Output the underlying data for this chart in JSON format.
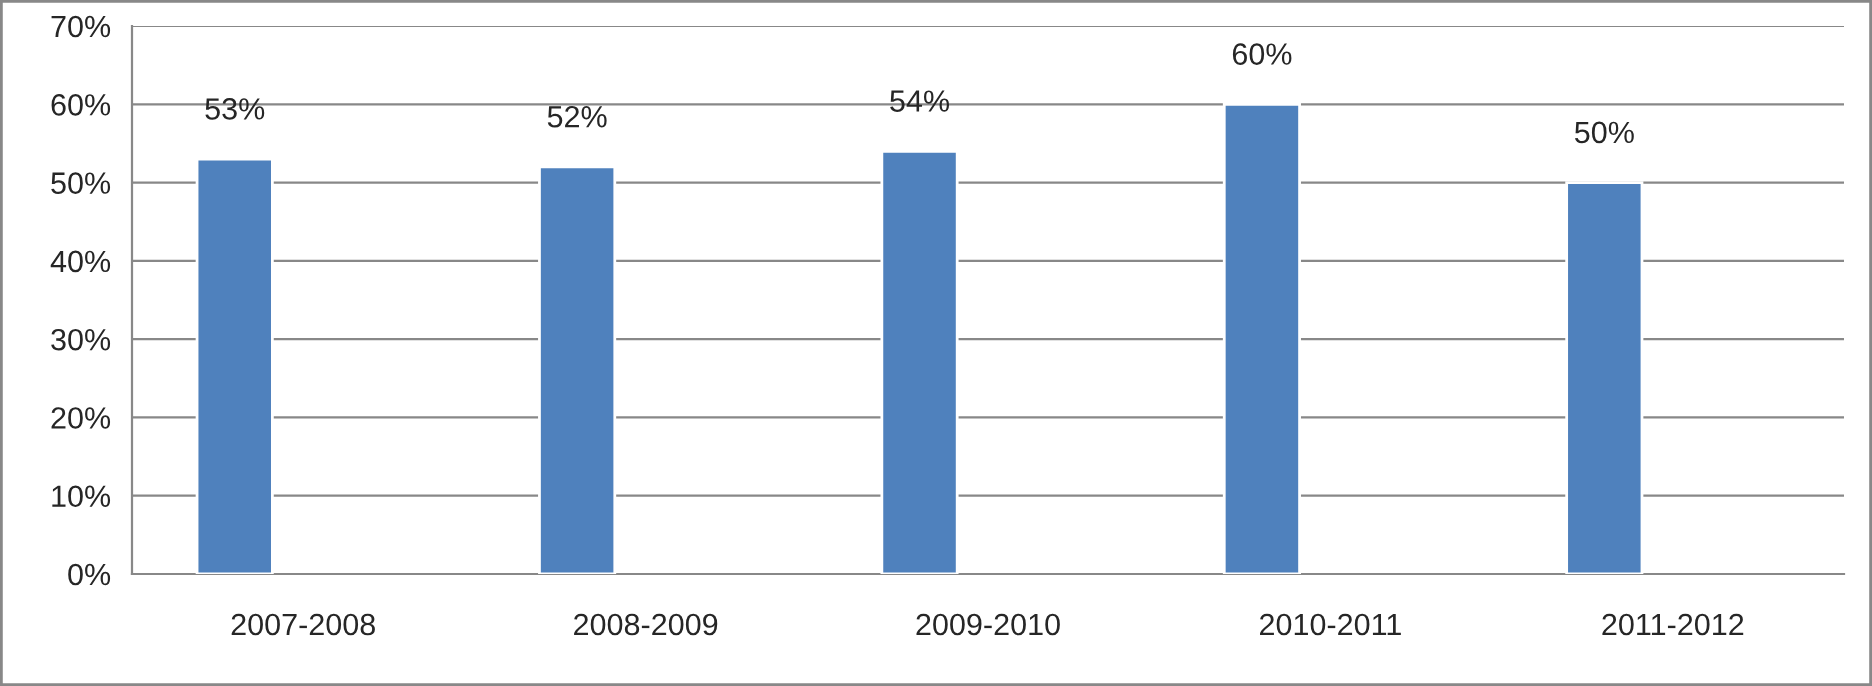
{
  "chart_data": {
    "type": "bar",
    "categories": [
      "2007-2008",
      "2008-2009",
      "2009-2010",
      "2010-2011",
      "2011-2012"
    ],
    "values": [
      53,
      52,
      54,
      60,
      50
    ],
    "value_labels": [
      "53%",
      "52%",
      "54%",
      "60%",
      "50%"
    ],
    "color": "#4f81bd",
    "ylim": [
      0,
      70
    ],
    "yticks": [
      {
        "value": 0,
        "label": "0%"
      },
      {
        "value": 10,
        "label": "10%"
      },
      {
        "value": 20,
        "label": "20%"
      },
      {
        "value": 30,
        "label": "30%"
      },
      {
        "value": 40,
        "label": "40%"
      },
      {
        "value": 50,
        "label": "50%"
      },
      {
        "value": 60,
        "label": "60%"
      },
      {
        "value": 70,
        "label": "70%"
      }
    ],
    "grid": "y",
    "legend": false
  }
}
